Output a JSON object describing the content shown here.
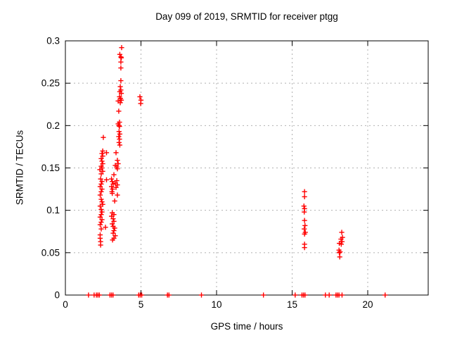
{
  "chart_data": {
    "type": "scatter",
    "title": "Day 099 of 2019, SRMTID for receiver ptgg",
    "xlabel": "GPS time / hours",
    "ylabel": "SRMTID / TECUs",
    "xlim": [
      0,
      24
    ],
    "ylim": [
      0,
      0.3
    ],
    "xticks": [
      0,
      5,
      10,
      15,
      20
    ],
    "xtick_labels": [
      "0",
      "5",
      "10",
      "15",
      "20"
    ],
    "yticks": [
      0,
      0.05,
      0.1,
      0.15,
      0.2,
      0.25,
      0.3
    ],
    "ytick_labels": [
      "0",
      "0.05",
      "0.1",
      "0.15",
      "0.2",
      "0.25",
      "0.3"
    ],
    "grid": true,
    "grid_style": "dotted",
    "grid_color": "#b0b0b0",
    "legend_position": "none",
    "marker": "plus",
    "marker_color": "#ff0000",
    "axis_color": "#000000",
    "series": [
      {
        "name": "SRMTID",
        "points": [
          [
            2.51,
            0.186
          ],
          [
            2.47,
            0.17
          ],
          [
            2.42,
            0.167
          ],
          [
            2.47,
            0.164
          ],
          [
            2.37,
            0.161
          ],
          [
            2.42,
            0.158
          ],
          [
            2.47,
            0.155
          ],
          [
            2.37,
            0.152
          ],
          [
            2.42,
            0.15
          ],
          [
            2.28,
            0.148
          ],
          [
            2.47,
            0.146
          ],
          [
            2.37,
            0.143
          ],
          [
            2.33,
            0.137
          ],
          [
            2.42,
            0.134
          ],
          [
            2.37,
            0.131
          ],
          [
            2.3,
            0.128
          ],
          [
            2.42,
            0.125
          ],
          [
            2.37,
            0.122
          ],
          [
            2.3,
            0.118
          ],
          [
            2.37,
            0.113
          ],
          [
            2.42,
            0.11
          ],
          [
            2.47,
            0.107
          ],
          [
            2.3,
            0.105
          ],
          [
            2.37,
            0.101
          ],
          [
            2.42,
            0.098
          ],
          [
            2.37,
            0.095
          ],
          [
            2.3,
            0.092
          ],
          [
            2.42,
            0.089
          ],
          [
            2.37,
            0.086
          ],
          [
            2.3,
            0.083
          ],
          [
            2.65,
            0.08
          ],
          [
            2.37,
            0.078
          ],
          [
            2.3,
            0.071
          ],
          [
            2.3,
            0.067
          ],
          [
            2.33,
            0.063
          ],
          [
            2.33,
            0.059
          ],
          [
            2.72,
            0.168
          ],
          [
            2.72,
            0.136
          ],
          [
            3.05,
            0.137
          ],
          [
            3.1,
            0.134
          ],
          [
            3.16,
            0.131
          ],
          [
            3.05,
            0.128
          ],
          [
            3.12,
            0.125
          ],
          [
            3.08,
            0.122
          ],
          [
            3.1,
            0.12
          ],
          [
            3.44,
            0.118
          ],
          [
            3.26,
            0.111
          ],
          [
            3.1,
            0.097
          ],
          [
            3.21,
            0.095
          ],
          [
            3.05,
            0.093
          ],
          [
            3.16,
            0.09
          ],
          [
            3.21,
            0.087
          ],
          [
            3.1,
            0.084
          ],
          [
            3.16,
            0.081
          ],
          [
            3.26,
            0.079
          ],
          [
            3.21,
            0.076
          ],
          [
            3.16,
            0.073
          ],
          [
            3.3,
            0.07
          ],
          [
            3.21,
            0.067
          ],
          [
            3.12,
            0.065
          ],
          [
            3.72,
            0.292
          ],
          [
            3.6,
            0.284
          ],
          [
            3.67,
            0.281
          ],
          [
            3.7,
            0.28
          ],
          [
            3.67,
            0.275
          ],
          [
            3.67,
            0.268
          ],
          [
            3.67,
            0.253
          ],
          [
            3.63,
            0.246
          ],
          [
            3.67,
            0.242
          ],
          [
            3.6,
            0.24
          ],
          [
            3.7,
            0.238
          ],
          [
            3.58,
            0.234
          ],
          [
            3.65,
            0.232
          ],
          [
            3.7,
            0.23
          ],
          [
            3.49,
            0.229
          ],
          [
            3.63,
            0.227
          ],
          [
            3.53,
            0.217
          ],
          [
            3.58,
            0.204
          ],
          [
            3.49,
            0.202
          ],
          [
            3.55,
            0.2
          ],
          [
            3.58,
            0.199
          ],
          [
            3.55,
            0.193
          ],
          [
            3.6,
            0.19
          ],
          [
            3.53,
            0.187
          ],
          [
            3.58,
            0.184
          ],
          [
            3.55,
            0.18
          ],
          [
            3.6,
            0.177
          ],
          [
            3.35,
            0.168
          ],
          [
            3.44,
            0.159
          ],
          [
            3.49,
            0.155
          ],
          [
            3.3,
            0.153
          ],
          [
            3.4,
            0.151
          ],
          [
            3.44,
            0.149
          ],
          [
            3.21,
            0.142
          ],
          [
            3.4,
            0.135
          ],
          [
            3.3,
            0.132
          ],
          [
            3.44,
            0.13
          ],
          [
            3.35,
            0.127
          ],
          [
            4.93,
            0.234
          ],
          [
            5.0,
            0.23
          ],
          [
            4.98,
            0.226
          ],
          [
            15.82,
            0.122
          ],
          [
            15.82,
            0.116
          ],
          [
            15.78,
            0.105
          ],
          [
            15.82,
            0.102
          ],
          [
            15.8,
            0.098
          ],
          [
            15.82,
            0.088
          ],
          [
            15.85,
            0.082
          ],
          [
            15.8,
            0.078
          ],
          [
            15.87,
            0.074
          ],
          [
            15.82,
            0.072
          ],
          [
            15.82,
            0.06
          ],
          [
            15.82,
            0.056
          ],
          [
            18.28,
            0.074
          ],
          [
            18.33,
            0.068
          ],
          [
            18.23,
            0.066
          ],
          [
            18.3,
            0.063
          ],
          [
            18.12,
            0.061
          ],
          [
            18.25,
            0.06
          ],
          [
            18.1,
            0.053
          ],
          [
            18.17,
            0.051
          ],
          [
            18.12,
            0.05
          ],
          [
            18.15,
            0.045
          ],
          [
            1.53,
            0
          ],
          [
            1.9,
            0
          ],
          [
            2.05,
            0
          ],
          [
            2.15,
            0
          ],
          [
            2.25,
            0
          ],
          [
            2.95,
            0
          ],
          [
            3.05,
            0
          ],
          [
            3.15,
            0
          ],
          [
            4.85,
            0
          ],
          [
            4.95,
            0
          ],
          [
            5.05,
            0
          ],
          [
            6.75,
            0
          ],
          [
            6.85,
            0
          ],
          [
            9.0,
            0
          ],
          [
            13.1,
            0
          ],
          [
            15.2,
            0
          ],
          [
            15.65,
            0
          ],
          [
            15.75,
            0
          ],
          [
            15.85,
            0
          ],
          [
            17.2,
            0
          ],
          [
            17.45,
            0
          ],
          [
            17.9,
            0
          ],
          [
            18.0,
            0
          ],
          [
            18.1,
            0
          ],
          [
            18.3,
            0
          ],
          [
            21.15,
            0
          ]
        ]
      }
    ]
  }
}
